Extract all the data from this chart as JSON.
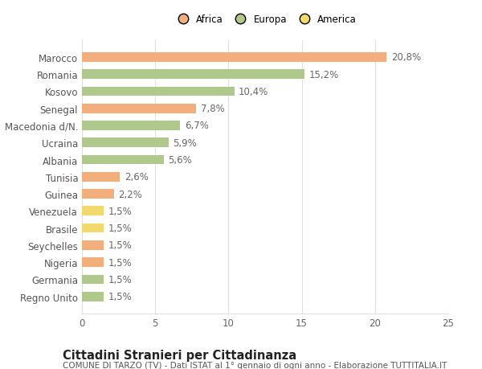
{
  "categories": [
    "Marocco",
    "Romania",
    "Kosovo",
    "Senegal",
    "Macedonia d/N.",
    "Ucraina",
    "Albania",
    "Tunisia",
    "Guinea",
    "Venezuela",
    "Brasile",
    "Seychelles",
    "Nigeria",
    "Germania",
    "Regno Unito"
  ],
  "values": [
    20.8,
    15.2,
    10.4,
    7.8,
    6.7,
    5.9,
    5.6,
    2.6,
    2.2,
    1.5,
    1.5,
    1.5,
    1.5,
    1.5,
    1.5
  ],
  "labels": [
    "20,8%",
    "15,2%",
    "10,4%",
    "7,8%",
    "6,7%",
    "5,9%",
    "5,6%",
    "2,6%",
    "2,2%",
    "1,5%",
    "1,5%",
    "1,5%",
    "1,5%",
    "1,5%",
    "1,5%"
  ],
  "colors": [
    "#F2AF7B",
    "#AFC98C",
    "#AFC98C",
    "#F2AF7B",
    "#AFC98C",
    "#AFC98C",
    "#AFC98C",
    "#F2AF7B",
    "#F2AF7B",
    "#F2D96E",
    "#F2D96E",
    "#F2AF7B",
    "#F2AF7B",
    "#AFC98C",
    "#AFC98C"
  ],
  "legend": [
    {
      "label": "Africa",
      "color": "#F2AF7B"
    },
    {
      "label": "Europa",
      "color": "#AFC98C"
    },
    {
      "label": "America",
      "color": "#F2D96E"
    }
  ],
  "title": "Cittadini Stranieri per Cittadinanza",
  "subtitle": "COMUNE DI TARZO (TV) - Dati ISTAT al 1° gennaio di ogni anno - Elaborazione TUTTITALIA.IT",
  "xlim": [
    0,
    25
  ],
  "xticks": [
    0,
    5,
    10,
    15,
    20,
    25
  ],
  "background_color": "#ffffff",
  "grid_color": "#e0e0e0",
  "bar_height": 0.55,
  "label_fontsize": 8.5,
  "tick_fontsize": 8.5,
  "title_fontsize": 10.5,
  "subtitle_fontsize": 7.5
}
